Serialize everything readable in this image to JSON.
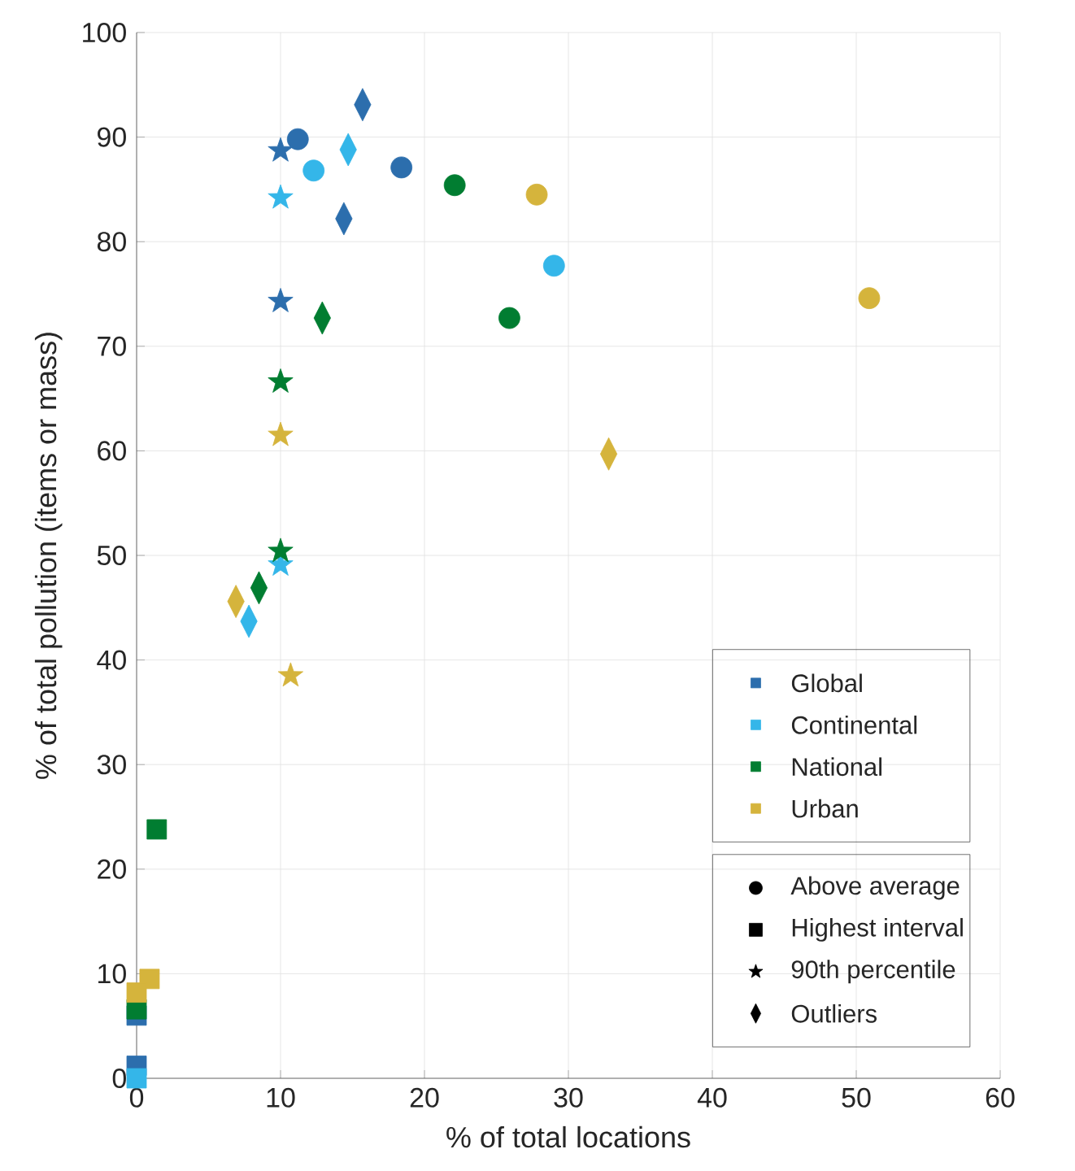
{
  "chart_data": {
    "type": "scatter",
    "xlabel": "% of total locations",
    "ylabel": "% of total pollution (items or mass)",
    "xlim": [
      0,
      60
    ],
    "ylim": [
      0,
      100
    ],
    "xticks": [
      0,
      10,
      20,
      30,
      40,
      50,
      60
    ],
    "yticks": [
      0,
      10,
      20,
      30,
      40,
      50,
      60,
      70,
      80,
      90,
      100
    ],
    "grid": true,
    "legend": "bottom right",
    "series": [
      {
        "name": "Global",
        "color": "#2c6ead",
        "marker": "circle",
        "x": [
          11.2,
          18.4
        ],
        "values": [
          89.8,
          87.1
        ]
      },
      {
        "color": "#2c6ead",
        "marker": "diamond",
        "x": [
          15.7,
          14.4
        ],
        "values": [
          93.1,
          82.2
        ]
      },
      {
        "color": "#2c6ead",
        "marker": "star",
        "x": [
          10,
          10
        ],
        "values": [
          88.7,
          74.3
        ]
      },
      {
        "color": "#2c6ead",
        "marker": "square",
        "x": [
          0,
          0
        ],
        "values": [
          1.2,
          6.0
        ]
      },
      {
        "name": "Continental",
        "color": "#34b6e9",
        "marker": "circle",
        "x": [
          12.3,
          29.0
        ],
        "values": [
          86.8,
          77.7
        ]
      },
      {
        "color": "#34b6e9",
        "marker": "diamond",
        "x": [
          14.7,
          7.8
        ],
        "values": [
          88.8,
          43.7
        ]
      },
      {
        "color": "#34b6e9",
        "marker": "star",
        "x": [
          10,
          10
        ],
        "values": [
          84.2,
          49.1
        ]
      },
      {
        "color": "#34b6e9",
        "marker": "square",
        "x": [
          0
        ],
        "values": [
          0
        ]
      },
      {
        "name": "National",
        "color": "#017d31",
        "marker": "circle",
        "x": [
          22.1,
          25.9
        ],
        "values": [
          85.4,
          72.7
        ]
      },
      {
        "color": "#017d31",
        "marker": "diamond",
        "x": [
          12.9,
          8.5
        ],
        "values": [
          72.7,
          46.9
        ]
      },
      {
        "color": "#017d31",
        "marker": "star",
        "x": [
          10,
          10
        ],
        "values": [
          66.6,
          50.4
        ]
      },
      {
        "color": "#017d31",
        "marker": "square",
        "x": [
          1.4,
          0
        ],
        "values": [
          23.8,
          6.6
        ]
      },
      {
        "name": "Urban",
        "color": "#d5b43c",
        "marker": "circle",
        "x": [
          27.8,
          50.9
        ],
        "values": [
          84.5,
          74.6
        ]
      },
      {
        "color": "#d5b43c",
        "marker": "diamond",
        "x": [
          32.8,
          6.9
        ],
        "values": [
          59.7,
          45.6
        ]
      },
      {
        "color": "#d5b43c",
        "marker": "star",
        "x": [
          10,
          10.7
        ],
        "values": [
          61.5,
          38.5
        ]
      },
      {
        "color": "#d5b43c",
        "marker": "square",
        "x": [
          0.9,
          0
        ],
        "values": [
          9.5,
          8.2
        ]
      },
      {
        "name": "Above average",
        "color": "#000000",
        "marker": "circle"
      },
      {
        "name": "Highest interval",
        "color": "#000000",
        "marker": "square"
      },
      {
        "name": "90th percentile",
        "color": "#000000",
        "marker": "star"
      },
      {
        "name": "Outliers",
        "color": "#000000",
        "marker": "diamond"
      }
    ]
  }
}
